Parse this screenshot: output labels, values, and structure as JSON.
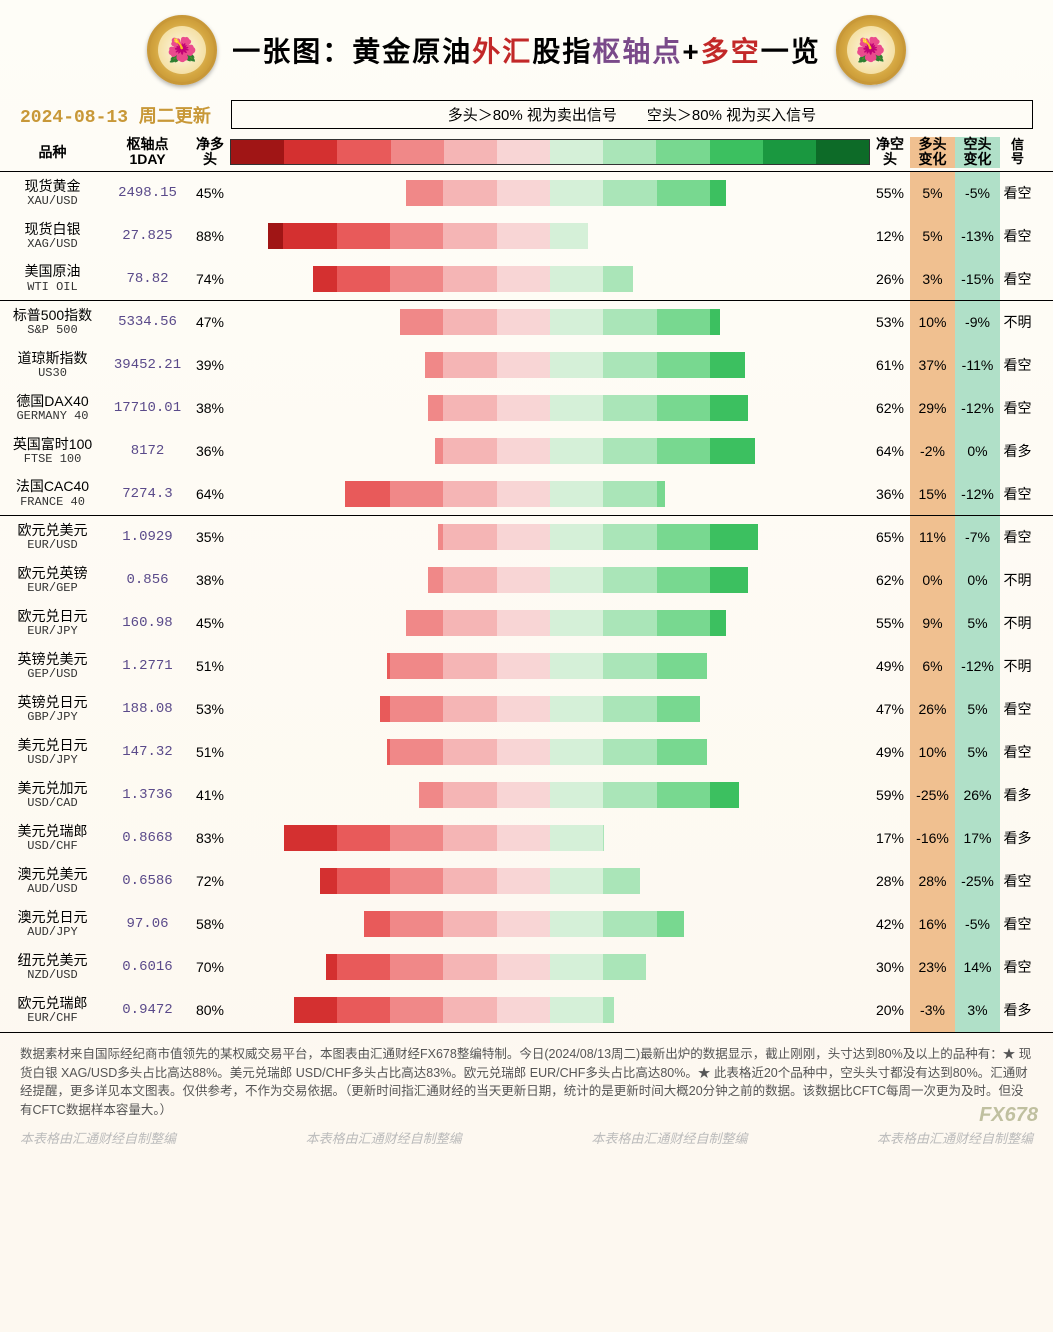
{
  "title": {
    "prefix": "一张图：",
    "part1": "黄金原油",
    "part2": "外汇",
    "part3": "股指",
    "part4": "枢轴点",
    "plus": "+",
    "part5": "多空",
    "suffix": "一览",
    "colors": {
      "prefix": "#000000",
      "part1": "#000000",
      "part2": "#c22828",
      "part3": "#000000",
      "part4": "#7a4a8a",
      "plus": "#000000",
      "part5": "#c22828",
      "suffix": "#000000"
    }
  },
  "date": {
    "text": "2024-08-13  周二更新",
    "color": "#c89838"
  },
  "legend": {
    "left": "多头＞80%  视为卖出信号",
    "right": "空头＞80%  视为买入信号"
  },
  "gradient_colors": [
    "#a01515",
    "#d43030",
    "#e85a5a",
    "#f08888",
    "#f5b5b5",
    "#f8d5d5",
    "#d5f0d8",
    "#aae5b8",
    "#78d890",
    "#3cc060",
    "#1a9840",
    "#0d6b28"
  ],
  "headers": {
    "name": "品种",
    "pivot": "枢轴点\n1DAY",
    "long": "净多\n头",
    "short": "净空\n头",
    "lchg": "多头\n变化",
    "schg": "空头\n变化",
    "signal": "信\n号"
  },
  "col_bg": {
    "lchg": "#f0c090",
    "schg": "#b0e0c8"
  },
  "pivot_color": "#5a4a8a",
  "bar_style": {
    "max_half_width": 320,
    "scale": 3.2
  },
  "red_shades": [
    "#f8d5d5",
    "#f5b5b5",
    "#f08888",
    "#e85a5a",
    "#d43030",
    "#a01515"
  ],
  "green_shades": [
    "#d5f0d8",
    "#aae5b8",
    "#78d890",
    "#3cc060",
    "#1a9840",
    "#0d6b28"
  ],
  "groups": [
    {
      "rows": [
        {
          "cn": "现货黄金",
          "en": "XAU/USD",
          "pivot": "2498.15",
          "long": 45,
          "short": 55,
          "lchg": "5%",
          "schg": "-5%",
          "signal": "看空"
        },
        {
          "cn": "现货白银",
          "en": "XAG/USD",
          "pivot": "27.825",
          "long": 88,
          "short": 12,
          "lchg": "5%",
          "schg": "-13%",
          "signal": "看空"
        },
        {
          "cn": "美国原油",
          "en": "WTI OIL",
          "pivot": "78.82",
          "long": 74,
          "short": 26,
          "lchg": "3%",
          "schg": "-15%",
          "signal": "看空"
        }
      ]
    },
    {
      "rows": [
        {
          "cn": "标普500指数",
          "en": "S&P 500",
          "pivot": "5334.56",
          "long": 47,
          "short": 53,
          "lchg": "10%",
          "schg": "-9%",
          "signal": "不明"
        },
        {
          "cn": "道琼斯指数",
          "en": "US30",
          "pivot": "39452.21",
          "long": 39,
          "short": 61,
          "lchg": "37%",
          "schg": "-11%",
          "signal": "看空"
        },
        {
          "cn": "德国DAX40",
          "en": "GERMANY 40",
          "pivot": "17710.01",
          "long": 38,
          "short": 62,
          "lchg": "29%",
          "schg": "-12%",
          "signal": "看空"
        },
        {
          "cn": "英国富时100",
          "en": "FTSE 100",
          "pivot": "8172",
          "long": 36,
          "short": 64,
          "lchg": "-2%",
          "schg": "0%",
          "signal": "看多"
        },
        {
          "cn": "法国CAC40",
          "en": "FRANCE 40",
          "pivot": "7274.3",
          "long": 64,
          "short": 36,
          "lchg": "15%",
          "schg": "-12%",
          "signal": "看空"
        }
      ]
    },
    {
      "rows": [
        {
          "cn": "欧元兑美元",
          "en": "EUR/USD",
          "pivot": "1.0929",
          "long": 35,
          "short": 65,
          "lchg": "11%",
          "schg": "-7%",
          "signal": "看空"
        },
        {
          "cn": "欧元兑英镑",
          "en": "EUR/GEP",
          "pivot": "0.856",
          "long": 38,
          "short": 62,
          "lchg": "0%",
          "schg": "0%",
          "signal": "不明"
        },
        {
          "cn": "欧元兑日元",
          "en": "EUR/JPY",
          "pivot": "160.98",
          "long": 45,
          "short": 55,
          "lchg": "9%",
          "schg": "5%",
          "signal": "不明"
        },
        {
          "cn": "英镑兑美元",
          "en": "GEP/USD",
          "pivot": "1.2771",
          "long": 51,
          "short": 49,
          "lchg": "6%",
          "schg": "-12%",
          "signal": "不明"
        },
        {
          "cn": "英镑兑日元",
          "en": "GBP/JPY",
          "pivot": "188.08",
          "long": 53,
          "short": 47,
          "lchg": "26%",
          "schg": "5%",
          "signal": "看空"
        },
        {
          "cn": "美元兑日元",
          "en": "USD/JPY",
          "pivot": "147.32",
          "long": 51,
          "short": 49,
          "lchg": "10%",
          "schg": "5%",
          "signal": "看空"
        },
        {
          "cn": "美元兑加元",
          "en": "USD/CAD",
          "pivot": "1.3736",
          "long": 41,
          "short": 59,
          "lchg": "-25%",
          "schg": "26%",
          "signal": "看多"
        },
        {
          "cn": "美元兑瑞郎",
          "en": "USD/CHF",
          "pivot": "0.8668",
          "long": 83,
          "short": 17,
          "lchg": "-16%",
          "schg": "17%",
          "signal": "看多"
        },
        {
          "cn": "澳元兑美元",
          "en": "AUD/USD",
          "pivot": "0.6586",
          "long": 72,
          "short": 28,
          "lchg": "28%",
          "schg": "-25%",
          "signal": "看空"
        },
        {
          "cn": "澳元兑日元",
          "en": "AUD/JPY",
          "pivot": "97.06",
          "long": 58,
          "short": 42,
          "lchg": "16%",
          "schg": "-5%",
          "signal": "看空"
        },
        {
          "cn": "纽元兑美元",
          "en": "NZD/USD",
          "pivot": "0.6016",
          "long": 70,
          "short": 30,
          "lchg": "23%",
          "schg": "14%",
          "signal": "看空"
        },
        {
          "cn": "欧元兑瑞郎",
          "en": "EUR/CHF",
          "pivot": "0.9472",
          "long": 80,
          "short": 20,
          "lchg": "-3%",
          "schg": "3%",
          "signal": "看多"
        }
      ]
    }
  ],
  "footer": "数据素材来自国际经纪商市值领先的某权威交易平台，本图表由汇通财经FX678整编特制。今日(2024/08/13周二)最新出炉的数据显示，截止刚刚，头寸达到80%及以上的品种有：★ 现货白银 XAG/USD多头占比高达88%。美元兑瑞郎 USD/CHF多头占比高达83%。欧元兑瑞郎 EUR/CHF多头占比高达80%。★ 此表格近20个品种中，空头头寸都没有达到80%。汇通财经提醒，更多详见本文图表。仅供参考，不作为交易依据。（更新时间指汇通财经的当天更新日期，统计的是更新时间大概20分钟之前的数据。该数据比CFTC每周一次更为及时。但没有CFTC数据样本容量大。）",
  "watermark": "本表格由汇通财经自制整编",
  "fx_logo": "FX678"
}
